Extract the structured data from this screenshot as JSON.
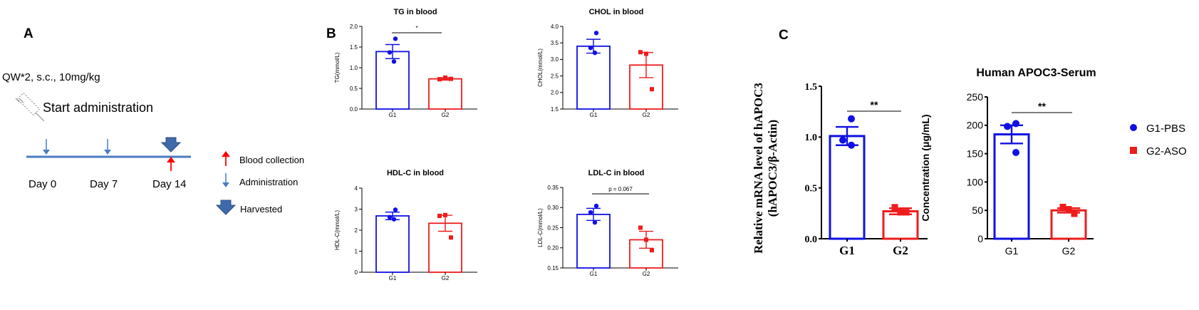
{
  "panel_labels": {
    "a": "A",
    "b": "B",
    "c": "C"
  },
  "timeline": {
    "dosing": "QW*2, s.c., 10mg/kg",
    "start": "Start administration",
    "days": [
      "Day 0",
      "Day 7",
      "Day 14"
    ],
    "legend": [
      "Blood collection",
      "Administration",
      "Harvested"
    ]
  },
  "colors": {
    "g1": "#1010e6",
    "g2": "#ee1c1c",
    "arrow_blue": "#4a7cc2",
    "red": "#ff0000",
    "timeline": "#4a7cc2"
  },
  "chart_data": [
    {
      "type": "bar",
      "title": "TG in blood",
      "ylabel": "TG(mmol/L)",
      "categories": [
        "G1",
        "G2"
      ],
      "values": [
        1.39,
        0.73
      ],
      "sem": [
        0.17,
        0.03
      ],
      "points": [
        [
          1.7,
          1.37,
          1.15
        ],
        [
          0.72,
          0.76,
          0.73
        ]
      ],
      "ylim": [
        0,
        2.0
      ],
      "yticks": [
        "0.0",
        "0.5",
        "1.0",
        "1.5",
        "2.0"
      ],
      "annotation": "*"
    },
    {
      "type": "bar",
      "title": "CHOL in blood",
      "ylabel": "CHOL(mmol/L)",
      "categories": [
        "G1",
        "G2"
      ],
      "values": [
        3.4,
        2.83
      ],
      "sem": [
        0.21,
        0.38
      ],
      "points": [
        [
          3.8,
          3.35,
          3.2
        ],
        [
          3.22,
          3.17,
          2.1
        ]
      ],
      "ylim": [
        1.5,
        4.0
      ],
      "yticks": [
        "1.5",
        "2.0",
        "2.5",
        "3.0",
        "3.5",
        "4.0"
      ]
    },
    {
      "type": "bar",
      "title": "HDL-C in blood",
      "ylabel": "HDL-C(mmol/L)",
      "categories": [
        "G1",
        "G2"
      ],
      "values": [
        2.68,
        2.33
      ],
      "sem": [
        0.18,
        0.38
      ],
      "points": [
        [
          2.97,
          2.62,
          2.52
        ],
        [
          2.68,
          2.72,
          1.65
        ]
      ],
      "ylim": [
        0,
        4
      ],
      "yticks": [
        "0",
        "1",
        "2",
        "3",
        "4"
      ]
    },
    {
      "type": "bar",
      "title": "LDL-C in blood",
      "ylabel": "LDL-C(mmol/L)",
      "categories": [
        "G1",
        "G2"
      ],
      "values": [
        0.283,
        0.22
      ],
      "sem": [
        0.015,
        0.021
      ],
      "points": [
        [
          0.304,
          0.288,
          0.263
        ],
        [
          0.25,
          0.22,
          0.194
        ]
      ],
      "ylim": [
        0.15,
        0.35
      ],
      "yticks": [
        "0.15",
        "0.20",
        "0.25",
        "0.30",
        "0.35"
      ],
      "annotation": "p = 0.067"
    },
    {
      "type": "bar",
      "title": "",
      "ylabel": "Relative mRNA level of hAPOC3 (hAPOC3/β-Actin)",
      "categories": [
        "G1",
        "G2"
      ],
      "values": [
        1.01,
        0.27
      ],
      "sem": [
        0.09,
        0.03
      ],
      "points": [
        [
          1.18,
          0.97,
          0.92
        ],
        [
          0.31,
          0.26,
          0.26
        ]
      ],
      "ylim": [
        0,
        1.5
      ],
      "yticks": [
        "0.0",
        "0.5",
        "1.0",
        "1.5"
      ],
      "annotation": "**"
    },
    {
      "type": "bar",
      "title": "Human APOC3-Serum",
      "ylabel": "Concentration (μg/mL)",
      "categories": [
        "G1",
        "G2"
      ],
      "values": [
        184,
        50
      ],
      "sem": [
        16,
        4
      ],
      "points": [
        [
          203,
          198,
          152
        ],
        [
          56,
          52,
          44
        ]
      ],
      "ylim": [
        0,
        250
      ],
      "yticks": [
        "0",
        "50",
        "100",
        "150",
        "200",
        "250"
      ],
      "annotation": "**",
      "legend": [
        "G1-PBS",
        "G2-ASO"
      ]
    }
  ]
}
